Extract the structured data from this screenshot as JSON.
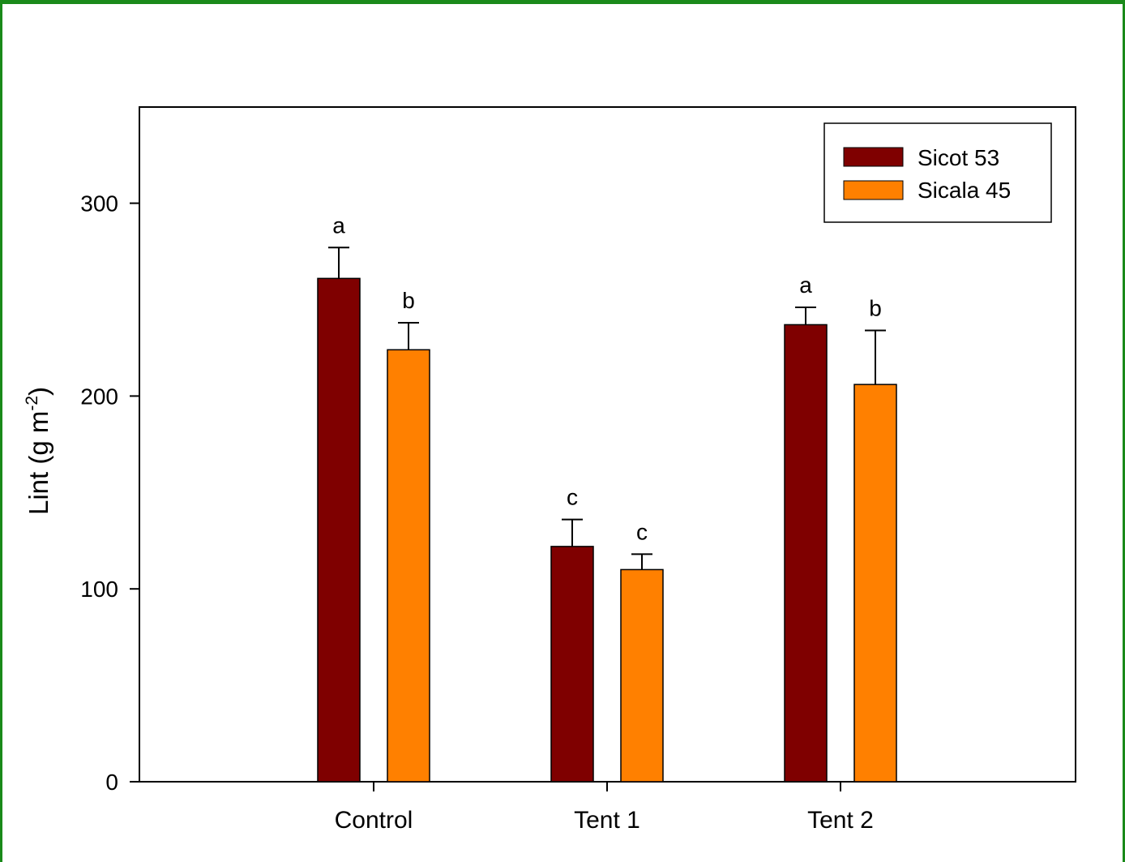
{
  "colors": {
    "frame": "#1a8a1a",
    "sicot": "#7f0000",
    "sicala": "#ff8000",
    "axis": "#000000"
  },
  "chart_data": {
    "type": "bar",
    "title": "",
    "xlabel": "",
    "ylabel": "Lint (g m",
    "ylabel_superscript": "-2",
    "ylabel_suffix": ")",
    "ylim": [
      0,
      350
    ],
    "yticks": [
      0,
      100,
      200,
      300
    ],
    "categories": [
      "Control",
      "Tent 1",
      "Tent 2"
    ],
    "legend_position": "top-right",
    "grid": false,
    "series": [
      {
        "name": "Sicot 53",
        "color": "#7f0000",
        "values": [
          261,
          122,
          237
        ],
        "errors": [
          16,
          14,
          9
        ],
        "labels": [
          "a",
          "c",
          "a"
        ]
      },
      {
        "name": "Sicala 45",
        "color": "#ff8000",
        "values": [
          224,
          110,
          206
        ],
        "errors": [
          14,
          8,
          28
        ],
        "labels": [
          "b",
          "c",
          "b"
        ]
      }
    ]
  }
}
